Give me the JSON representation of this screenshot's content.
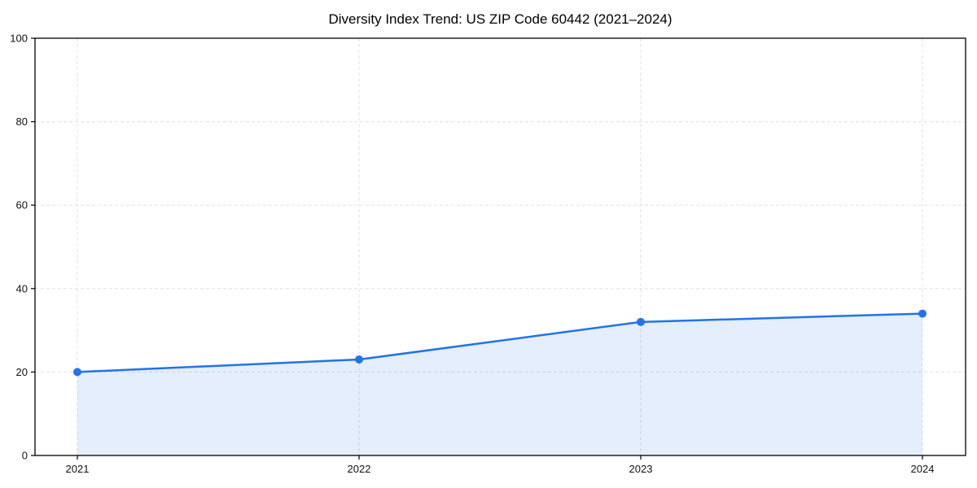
{
  "chart": {
    "title": "Diversity Index Trend: US ZIP Code 60442 (2021–2024)",
    "colors": {
      "line": "#2273e8",
      "fill": "#2273e8",
      "fill_opacity": 0.12,
      "grid": "#e0e0e0",
      "axis": "#000000",
      "tick_text": "#111111",
      "background": "#ffffff"
    }
  },
  "chart_data": {
    "type": "area",
    "categories": [
      "2021",
      "2022",
      "2023",
      "2024"
    ],
    "values": [
      20,
      23,
      32,
      34
    ],
    "series_name": "Diversity Index",
    "title": "Diversity Index Trend: US ZIP Code 60442 (2021–2024)",
    "xlabel": "",
    "ylabel": "",
    "ylim": [
      0,
      100
    ],
    "yticks": [
      0,
      20,
      40,
      60,
      80,
      100
    ],
    "ytick_labels": [
      "0",
      "20",
      "40",
      "60",
      "80",
      "100"
    ],
    "grid": true,
    "grid_style": "dashed",
    "legend_position": "none",
    "marker": "circle"
  }
}
